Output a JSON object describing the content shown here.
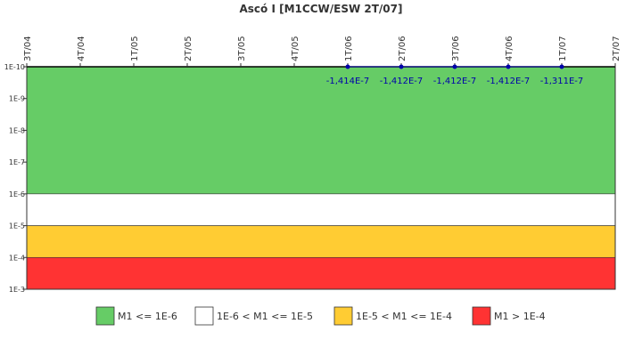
{
  "chart_data": {
    "type": "line",
    "title": "Ascó I [M1CCW/ESW 2T/07]",
    "categories": [
      "3T/04",
      "4T/04",
      "1T/05",
      "2T/05",
      "3T/05",
      "4T/05",
      "1T/06",
      "2T/06",
      "3T/06",
      "4T/06",
      "1T/07",
      "2T/07"
    ],
    "values": [
      null,
      null,
      null,
      null,
      null,
      null,
      -1.414e-07,
      -1.412e-07,
      -1.412e-07,
      -1.412e-07,
      -1.311e-07,
      null
    ],
    "value_labels": [
      null,
      null,
      null,
      null,
      null,
      null,
      "-1,414E-7",
      "-1,412E-7",
      "-1,412E-7",
      "-1,412E-7",
      "-1,311E-7",
      null
    ],
    "color": "#0000aa",
    "yscale": "log",
    "y_inverted": true,
    "ylim": [
      1e-10,
      0.001
    ],
    "yticks": [
      {
        "value": 1e-10,
        "label": "1E-10"
      },
      {
        "value": 1e-09,
        "label": "1E-9"
      },
      {
        "value": 1e-08,
        "label": "1E-8"
      },
      {
        "value": 1e-07,
        "label": "1E-7"
      },
      {
        "value": 1e-06,
        "label": "1E-6"
      },
      {
        "value": 1e-05,
        "label": "1E-5"
      },
      {
        "value": 0.0001,
        "label": "1E-4"
      },
      {
        "value": 0.001,
        "label": "1E-3"
      }
    ],
    "bands": [
      {
        "from": 1e-10,
        "to": 1e-06,
        "color": "#66cc66",
        "label": "M1 <= 1E-6"
      },
      {
        "from": 1e-06,
        "to": 1e-05,
        "color": "#ffffff",
        "label": "1E-6 < M1 <= 1E-5"
      },
      {
        "from": 1e-05,
        "to": 0.0001,
        "color": "#ffcc33",
        "label": "1E-5 < M1 <= 1E-4"
      },
      {
        "from": 0.0001,
        "to": 0.001,
        "color": "#ff3333",
        "label": "M1 > 1E-4"
      }
    ]
  }
}
